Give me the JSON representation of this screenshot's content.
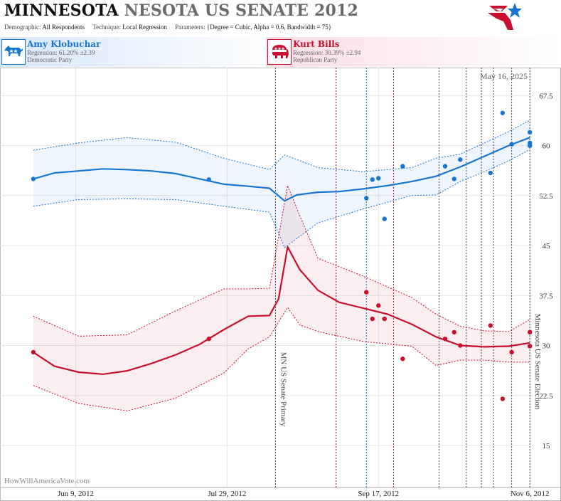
{
  "header": {
    "title_part1": "MINNESOTA",
    "title_part2": "NESOTA US SENATE 2012",
    "demographic_label": "Demographic:",
    "demographic_value": "All Respondents",
    "technique_label": "Technique:",
    "technique_value": "Local Regression",
    "parameters_label": "Parameters:",
    "parameters_value": "{Degree = Cubic, Alpha = 0.6, Bandwidth = 75}"
  },
  "candidates": [
    {
      "name": "Amy Klobuchar",
      "regression": "Regression: 61.20% ±2.39",
      "party": "Democratic Party",
      "color": "#1a75d2"
    },
    {
      "name": "Kurt Bills",
      "regression": "Regression: 30.39% ±2.94",
      "party": "Republican Party",
      "color": "#c8102e"
    }
  ],
  "chart_data": {
    "type": "scatter",
    "date_label": "May 16, 2025",
    "watermark": "HowWillAmericaVote.com",
    "x_tick_labels": [
      "Jun 9, 2012",
      "Jul 29, 2012",
      "Sep 17, 2012",
      "Nov 6, 2012"
    ],
    "x_ticks": [
      "2012-06-09",
      "2012-07-29",
      "2012-09-17",
      "2012-11-06"
    ],
    "xlim": [
      "2012-05-15",
      "2012-11-13"
    ],
    "y_tick_labels": [
      "15",
      "22.5",
      "30",
      "37.5",
      "45",
      "52.5",
      "60",
      "67.5"
    ],
    "y_ticks": [
      15,
      22.5,
      30,
      37.5,
      45,
      52.5,
      60,
      67.5
    ],
    "ylim": [
      8.7,
      71.7
    ],
    "grid": true,
    "events": [
      {
        "date": "2012-08-14",
        "label": "MN US Senate Primary",
        "color": "#444444"
      },
      {
        "date": "2012-11-06",
        "label": "Minnesota US Senate Election",
        "color": "#444444"
      }
    ],
    "markers": [
      {
        "date": "2012-09-03",
        "color": "#a0003a"
      },
      {
        "date": "2012-09-22",
        "color": "#c8102e"
      },
      {
        "date": "2012-09-13",
        "color": "#1a75d2"
      },
      {
        "date": "2012-10-07",
        "color": "#444444"
      },
      {
        "date": "2012-10-16",
        "color": "#444444"
      },
      {
        "date": "2012-10-21",
        "color": "#444444"
      },
      {
        "date": "2012-10-25",
        "color": "#444444"
      },
      {
        "date": "2012-10-31",
        "color": "#444444"
      }
    ],
    "series": [
      {
        "name": "Amy Klobuchar",
        "color": "#1a75d2",
        "points": [
          [
            "2012-05-26",
            55.0
          ],
          [
            "2012-07-23",
            54.9
          ],
          [
            "2012-09-13",
            52.1
          ],
          [
            "2012-09-15",
            54.9
          ],
          [
            "2012-09-17",
            55.1
          ],
          [
            "2012-09-19",
            49.0
          ],
          [
            "2012-09-25",
            56.9
          ],
          [
            "2012-10-09",
            56.9
          ],
          [
            "2012-10-12",
            55.0
          ],
          [
            "2012-10-14",
            57.9
          ],
          [
            "2012-10-24",
            55.9
          ],
          [
            "2012-10-28",
            64.9
          ],
          [
            "2012-10-31",
            60.2
          ],
          [
            "2012-11-06",
            62.0
          ],
          [
            "2012-11-06",
            60.4
          ],
          [
            "2012-11-06",
            60.0
          ]
        ],
        "trend": [
          [
            "2012-05-26",
            55.0
          ],
          [
            "2012-06-02",
            55.9
          ],
          [
            "2012-06-10",
            56.2
          ],
          [
            "2012-06-18",
            56.5
          ],
          [
            "2012-06-26",
            56.4
          ],
          [
            "2012-07-04",
            56.2
          ],
          [
            "2012-07-12",
            55.8
          ],
          [
            "2012-07-20",
            55.0
          ],
          [
            "2012-07-28",
            54.2
          ],
          [
            "2012-08-05",
            53.9
          ],
          [
            "2012-08-12",
            53.6
          ],
          [
            "2012-08-17",
            51.7
          ],
          [
            "2012-08-21",
            52.6
          ],
          [
            "2012-08-28",
            53.0
          ],
          [
            "2012-09-04",
            53.1
          ],
          [
            "2012-09-12",
            53.5
          ],
          [
            "2012-09-20",
            54.0
          ],
          [
            "2012-09-28",
            54.6
          ],
          [
            "2012-10-06",
            55.4
          ],
          [
            "2012-10-14",
            56.8
          ],
          [
            "2012-10-22",
            58.4
          ],
          [
            "2012-10-30",
            60.0
          ],
          [
            "2012-11-06",
            61.2
          ]
        ],
        "upper": [
          [
            "2012-05-26",
            59.3
          ],
          [
            "2012-06-10",
            60.4
          ],
          [
            "2012-06-26",
            61.2
          ],
          [
            "2012-07-12",
            60.5
          ],
          [
            "2012-07-28",
            58.1
          ],
          [
            "2012-08-12",
            56.4
          ],
          [
            "2012-08-17",
            58.6
          ],
          [
            "2012-08-28",
            56.7
          ],
          [
            "2012-09-12",
            56.1
          ],
          [
            "2012-09-28",
            56.7
          ],
          [
            "2012-10-06",
            58.1
          ],
          [
            "2012-10-14",
            58.7
          ],
          [
            "2012-10-22",
            60.4
          ],
          [
            "2012-10-30",
            62.1
          ],
          [
            "2012-11-06",
            63.8
          ]
        ],
        "lower": [
          [
            "2012-05-26",
            50.9
          ],
          [
            "2012-06-10",
            51.9
          ],
          [
            "2012-06-26",
            52.0
          ],
          [
            "2012-07-12",
            51.9
          ],
          [
            "2012-07-28",
            50.9
          ],
          [
            "2012-08-12",
            50.0
          ],
          [
            "2012-08-17",
            44.7
          ],
          [
            "2012-08-28",
            48.4
          ],
          [
            "2012-09-12",
            50.5
          ],
          [
            "2012-09-28",
            52.5
          ],
          [
            "2012-10-06",
            52.6
          ],
          [
            "2012-10-14",
            54.6
          ],
          [
            "2012-10-22",
            56.1
          ],
          [
            "2012-10-30",
            57.7
          ],
          [
            "2012-11-06",
            59.4
          ]
        ]
      },
      {
        "name": "Kurt Bills",
        "color": "#c8102e",
        "points": [
          [
            "2012-05-26",
            29.0
          ],
          [
            "2012-07-23",
            31.0
          ],
          [
            "2012-09-13",
            38.0
          ],
          [
            "2012-09-15",
            34.0
          ],
          [
            "2012-09-17",
            36.0
          ],
          [
            "2012-09-19",
            34.0
          ],
          [
            "2012-09-25",
            28.0
          ],
          [
            "2012-10-09",
            31.0
          ],
          [
            "2012-10-12",
            32.0
          ],
          [
            "2012-10-14",
            30.0
          ],
          [
            "2012-10-24",
            33.0
          ],
          [
            "2012-10-28",
            22.0
          ],
          [
            "2012-10-31",
            29.0
          ],
          [
            "2012-11-06",
            32.0
          ],
          [
            "2012-11-06",
            29.9
          ]
        ],
        "trend": [
          [
            "2012-05-26",
            29.0
          ],
          [
            "2012-06-02",
            26.9
          ],
          [
            "2012-06-10",
            26.0
          ],
          [
            "2012-06-18",
            25.7
          ],
          [
            "2012-06-26",
            26.2
          ],
          [
            "2012-07-04",
            27.3
          ],
          [
            "2012-07-12",
            28.6
          ],
          [
            "2012-07-20",
            30.2
          ],
          [
            "2012-07-28",
            32.4
          ],
          [
            "2012-08-05",
            34.4
          ],
          [
            "2012-08-12",
            34.5
          ],
          [
            "2012-08-15",
            37.0
          ],
          [
            "2012-08-18",
            44.8
          ],
          [
            "2012-08-22",
            41.4
          ],
          [
            "2012-08-28",
            38.3
          ],
          [
            "2012-09-04",
            36.5
          ],
          [
            "2012-09-12",
            35.6
          ],
          [
            "2012-09-20",
            34.7
          ],
          [
            "2012-09-28",
            33.2
          ],
          [
            "2012-10-06",
            31.3
          ],
          [
            "2012-10-14",
            30.0
          ],
          [
            "2012-10-22",
            29.8
          ],
          [
            "2012-10-30",
            29.9
          ],
          [
            "2012-11-06",
            30.4
          ]
        ],
        "upper": [
          [
            "2012-05-26",
            34.4
          ],
          [
            "2012-06-10",
            31.4
          ],
          [
            "2012-06-26",
            31.6
          ],
          [
            "2012-07-12",
            35.2
          ],
          [
            "2012-07-28",
            38.5
          ],
          [
            "2012-08-05",
            38.5
          ],
          [
            "2012-08-12",
            38.6
          ],
          [
            "2012-08-18",
            54.0
          ],
          [
            "2012-08-22",
            49.5
          ],
          [
            "2012-08-28",
            43.1
          ],
          [
            "2012-09-12",
            40.4
          ],
          [
            "2012-09-28",
            37.2
          ],
          [
            "2012-10-06",
            34.7
          ],
          [
            "2012-10-14",
            32.9
          ],
          [
            "2012-10-22",
            32.2
          ],
          [
            "2012-10-30",
            32.1
          ],
          [
            "2012-11-06",
            33.9
          ]
        ],
        "lower": [
          [
            "2012-05-26",
            24.0
          ],
          [
            "2012-06-10",
            21.3
          ],
          [
            "2012-06-26",
            20.2
          ],
          [
            "2012-07-12",
            22.1
          ],
          [
            "2012-07-28",
            25.9
          ],
          [
            "2012-08-05",
            29.5
          ],
          [
            "2012-08-12",
            31.3
          ],
          [
            "2012-08-18",
            35.7
          ],
          [
            "2012-08-22",
            33.1
          ],
          [
            "2012-08-28",
            32.1
          ],
          [
            "2012-09-12",
            30.6
          ],
          [
            "2012-09-28",
            29.9
          ],
          [
            "2012-10-06",
            27.0
          ],
          [
            "2012-10-14",
            27.8
          ],
          [
            "2012-10-22",
            27.8
          ],
          [
            "2012-10-30",
            27.5
          ],
          [
            "2012-11-06",
            27.5
          ]
        ]
      }
    ]
  }
}
